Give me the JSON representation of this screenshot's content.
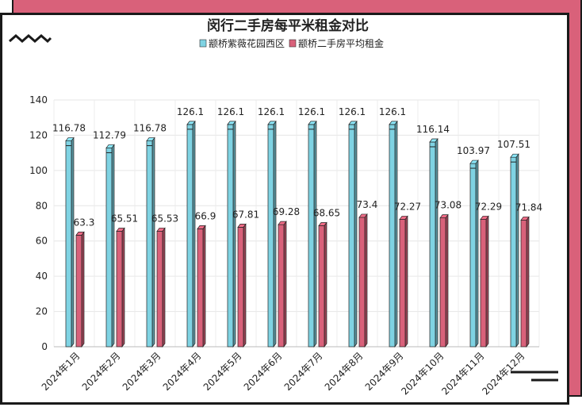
{
  "chart_data": {
    "type": "bar",
    "title": "闵行二手房每平米租金对比",
    "categories": [
      "2024年1月",
      "2024年2月",
      "2024年3月",
      "2024年4月",
      "2024年5月",
      "2024年6月",
      "2024年7月",
      "2024年8月",
      "2024年9月",
      "2024年10月",
      "2024年11月",
      "2024年12月"
    ],
    "series": [
      {
        "name": "颛桥紫薇花园西区",
        "color": "#7fd3e3",
        "values": [
          116.78,
          112.79,
          116.78,
          126.1,
          126.1,
          126.1,
          126.1,
          126.1,
          126.1,
          116.14,
          103.97,
          107.51
        ]
      },
      {
        "name": "颛桥二手房平均租金",
        "color": "#d9617a",
        "values": [
          63.3,
          65.51,
          65.53,
          66.9,
          67.81,
          69.28,
          68.65,
          73.4,
          72.27,
          73.08,
          72.29,
          71.84
        ]
      }
    ],
    "ylim": [
      0,
      140
    ],
    "yticks": [
      0,
      20,
      40,
      60,
      80,
      100,
      120,
      140
    ],
    "grid": true,
    "legend_position": "top-center"
  }
}
